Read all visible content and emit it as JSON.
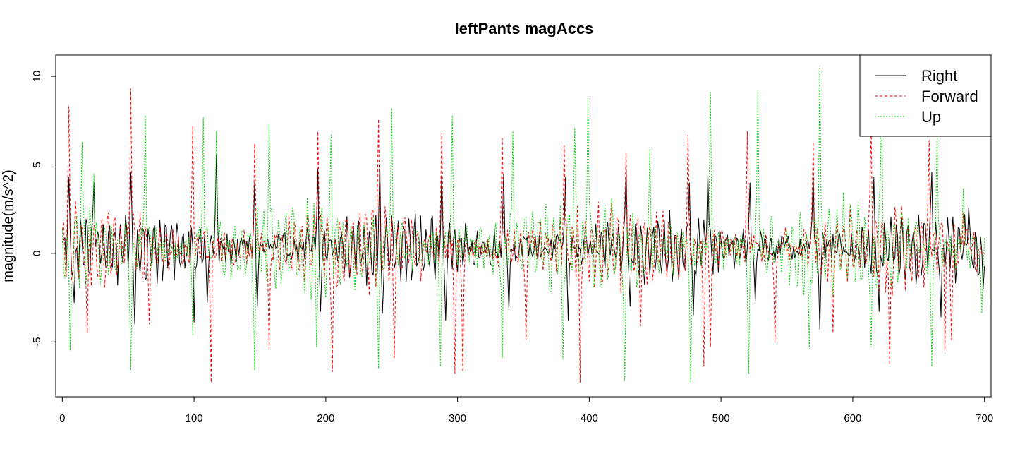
{
  "chart_data": {
    "type": "line",
    "title": "leftPants magAccs",
    "xlabel": "",
    "ylabel": "magnitude(m/s^2)",
    "xlim": [
      -5,
      705
    ],
    "ylim": [
      -8.1,
      11.2
    ],
    "x_ticks": [
      0,
      100,
      200,
      300,
      400,
      500,
      600,
      700
    ],
    "y_ticks": [
      -5,
      0,
      5,
      10
    ],
    "legend_position": "top-right",
    "grid": false,
    "n_points": 701,
    "series": [
      {
        "name": "Right",
        "color": "#000000",
        "dash": "solid",
        "peaks": [
          [
            5,
            4.3
          ],
          [
            24,
            4.0
          ],
          [
            52,
            4.6
          ],
          [
            99,
            4.4
          ],
          [
            117,
            5.6
          ],
          [
            146,
            4.0
          ],
          [
            194,
            4.8
          ],
          [
            241,
            5.1
          ],
          [
            288,
            4.4
          ],
          [
            335,
            4.5
          ],
          [
            382,
            4.3
          ],
          [
            428,
            4.7
          ],
          [
            476,
            4.0
          ],
          [
            490,
            4.5
          ],
          [
            522,
            4.0
          ],
          [
            570,
            4.3
          ],
          [
            616,
            4.3
          ],
          [
            660,
            4.6
          ],
          [
            668,
            2.5
          ],
          [
            688,
            2.6
          ]
        ],
        "troughs": [
          [
            9,
            -2.8
          ],
          [
            55,
            -4.0
          ],
          [
            100,
            -3.9
          ],
          [
            110,
            -2.8
          ],
          [
            148,
            -3.0
          ],
          [
            196,
            -3.3
          ],
          [
            243,
            -3.4
          ],
          [
            291,
            -3.8
          ],
          [
            339,
            -3.2
          ],
          [
            384,
            -3.8
          ],
          [
            431,
            -3.0
          ],
          [
            479,
            -3.5
          ],
          [
            526,
            -2.7
          ],
          [
            575,
            -4.3
          ],
          [
            620,
            -3.3
          ],
          [
            667,
            -3.6
          ],
          [
            699,
            -2.0
          ]
        ],
        "rest_amplitude": 1.6
      },
      {
        "name": "Forward",
        "color": "#ff0000",
        "dash": "4,3",
        "peaks": [
          [
            5,
            8.3
          ],
          [
            52,
            9.3
          ],
          [
            99,
            7.2
          ],
          [
            114,
            5.0
          ],
          [
            146,
            6.2
          ],
          [
            194,
            6.9
          ],
          [
            240,
            7.6
          ],
          [
            288,
            6.8
          ],
          [
            334,
            6.5
          ],
          [
            381,
            6.1
          ],
          [
            392,
            7.1
          ],
          [
            428,
            5.7
          ],
          [
            475,
            6.7
          ],
          [
            520,
            6.9
          ],
          [
            570,
            6.3
          ],
          [
            614,
            7.1
          ],
          [
            658,
            6.4
          ],
          [
            669,
            5.1
          ],
          [
            684,
            2.3
          ]
        ],
        "troughs": [
          [
            19,
            -4.5
          ],
          [
            66,
            -4.0
          ],
          [
            113,
            -7.3
          ],
          [
            157,
            -5.4
          ],
          [
            205,
            -6.7
          ],
          [
            252,
            -5.9
          ],
          [
            298,
            -6.8
          ],
          [
            304,
            -6.7
          ],
          [
            352,
            -4.9
          ],
          [
            393,
            -7.3
          ],
          [
            439,
            -4.1
          ],
          [
            487,
            -6.4
          ],
          [
            492,
            -5.3
          ],
          [
            541,
            -5.0
          ],
          [
            585,
            -4.5
          ],
          [
            628,
            -6.3
          ],
          [
            670,
            -5.5
          ],
          [
            675,
            -4.9
          ]
        ],
        "rest_amplitude": 1.9
      },
      {
        "name": "Up",
        "color": "#00cd00",
        "dash": "2,2",
        "peaks": [
          [
            15,
            6.3
          ],
          [
            24,
            4.5
          ],
          [
            63,
            7.8
          ],
          [
            107,
            7.7
          ],
          [
            117,
            6.9
          ],
          [
            157,
            7.3
          ],
          [
            204,
            6.7
          ],
          [
            250,
            8.2
          ],
          [
            296,
            7.8
          ],
          [
            342,
            6.9
          ],
          [
            389,
            7.1
          ],
          [
            399,
            8.8
          ],
          [
            446,
            5.9
          ],
          [
            492,
            9.1
          ],
          [
            528,
            9.2
          ],
          [
            575,
            10.6
          ],
          [
            622,
            8.8
          ],
          [
            664,
            6.7
          ],
          [
            684,
            3.7
          ]
        ],
        "troughs": [
          [
            6,
            -5.5
          ],
          [
            52,
            -6.6
          ],
          [
            99,
            -4.6
          ],
          [
            146,
            -6.6
          ],
          [
            193,
            -5.3
          ],
          [
            240,
            -6.5
          ],
          [
            287,
            -6.4
          ],
          [
            334,
            -5.9
          ],
          [
            380,
            -6.0
          ],
          [
            427,
            -7.2
          ],
          [
            477,
            -7.3
          ],
          [
            521,
            -6.8
          ],
          [
            567,
            -5.4
          ],
          [
            614,
            -5.3
          ],
          [
            660,
            -6.4
          ],
          [
            698,
            -3.4
          ]
        ],
        "rest_amplitude": 2.2
      }
    ]
  }
}
